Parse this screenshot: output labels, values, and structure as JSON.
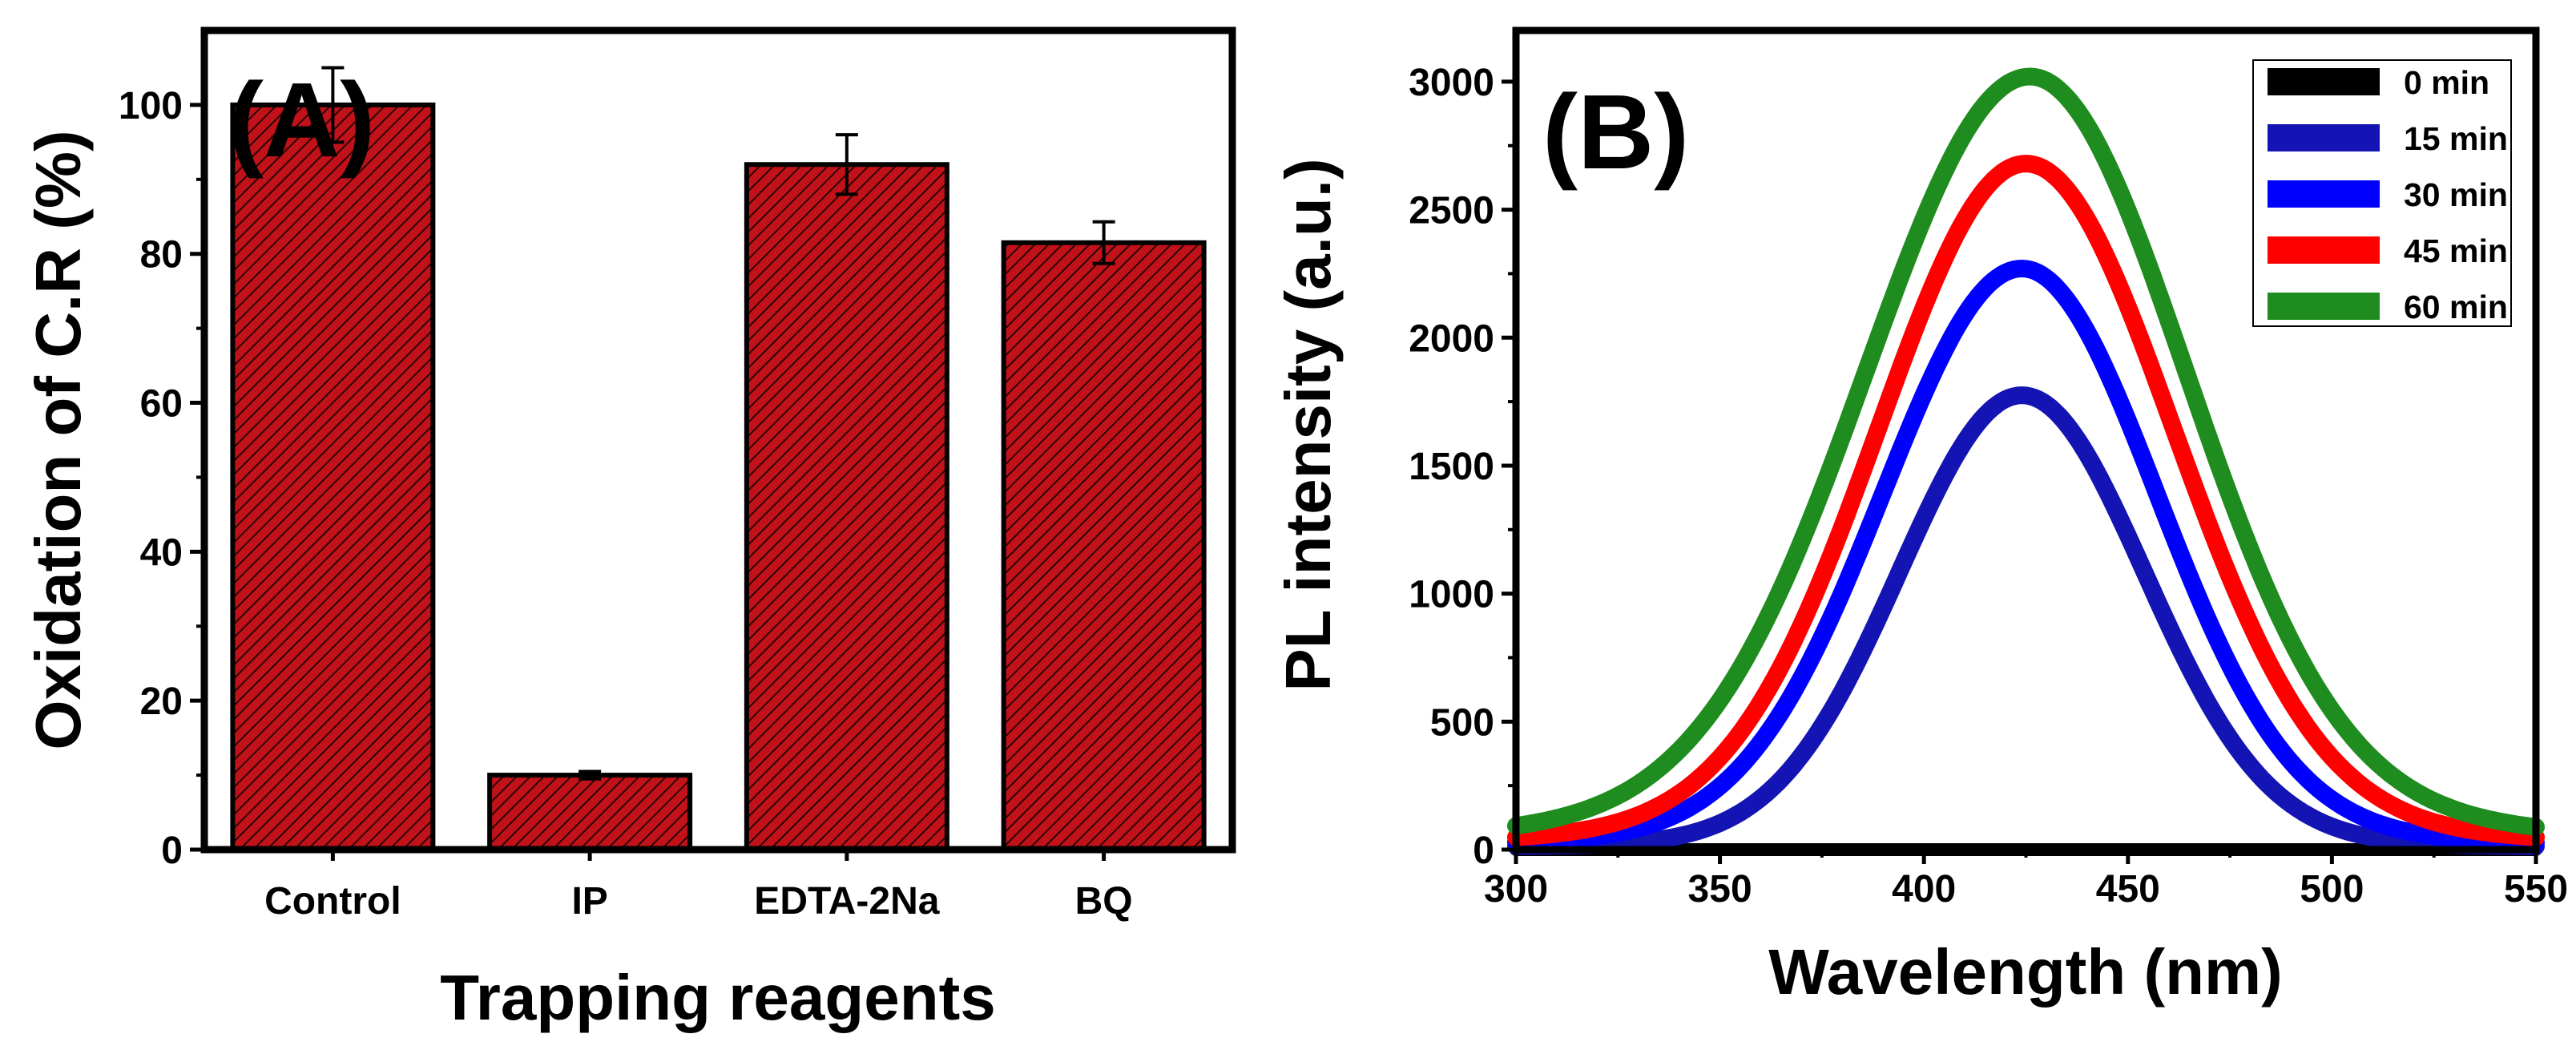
{
  "chart_data": [
    {
      "type": "bar",
      "panel_label": "(A)",
      "categories": [
        "Control",
        "IP",
        "EDTA-2Na",
        "BQ"
      ],
      "values": [
        100,
        10,
        92,
        81.5
      ],
      "errors": [
        5,
        0.5,
        4,
        2.8
      ],
      "xlabel": "Trapping reagents",
      "ylabel": "Oxidation of C.R (%)",
      "ylim": [
        0,
        110
      ],
      "yticks": [
        "0",
        "20",
        "40",
        "60",
        "80",
        "100"
      ],
      "bar_fill": "#c1121a",
      "hatch": "diagonal",
      "grid": false
    },
    {
      "type": "line",
      "panel_label": "(B)",
      "xlabel": "Wavelength (nm)",
      "ylabel": "PL intensity (a.u.)",
      "xlim": [
        300,
        550
      ],
      "ylim": [
        0,
        3200
      ],
      "xticks": [
        "300",
        "350",
        "400",
        "450",
        "500",
        "550"
      ],
      "yticks": [
        "0",
        "500",
        "1000",
        "1500",
        "2000",
        "2500",
        "3000"
      ],
      "legend_position": "top-right",
      "grid": false,
      "series": [
        {
          "name": "0 min",
          "color": "#000000",
          "peak_x": 425,
          "peak_y": 0,
          "sigma_left": 37,
          "sigma_right": 34,
          "tail": 0
        },
        {
          "name": "15 min",
          "color": "#1414b4",
          "peak_x": 424,
          "peak_y": 1750,
          "sigma_left": 30,
          "sigma_right": 30,
          "tail": 25
        },
        {
          "name": "30 min",
          "color": "#0000ff",
          "peak_x": 424,
          "peak_y": 2220,
          "sigma_left": 34,
          "sigma_right": 33,
          "tail": 50
        },
        {
          "name": "45 min",
          "color": "#ff0000",
          "peak_x": 425,
          "peak_y": 2600,
          "sigma_left": 36,
          "sigma_right": 36,
          "tail": 80
        },
        {
          "name": "60 min",
          "color": "#1e8c1e",
          "peak_x": 426,
          "peak_y": 2880,
          "sigma_left": 40,
          "sigma_right": 38,
          "tail": 140
        }
      ]
    }
  ]
}
